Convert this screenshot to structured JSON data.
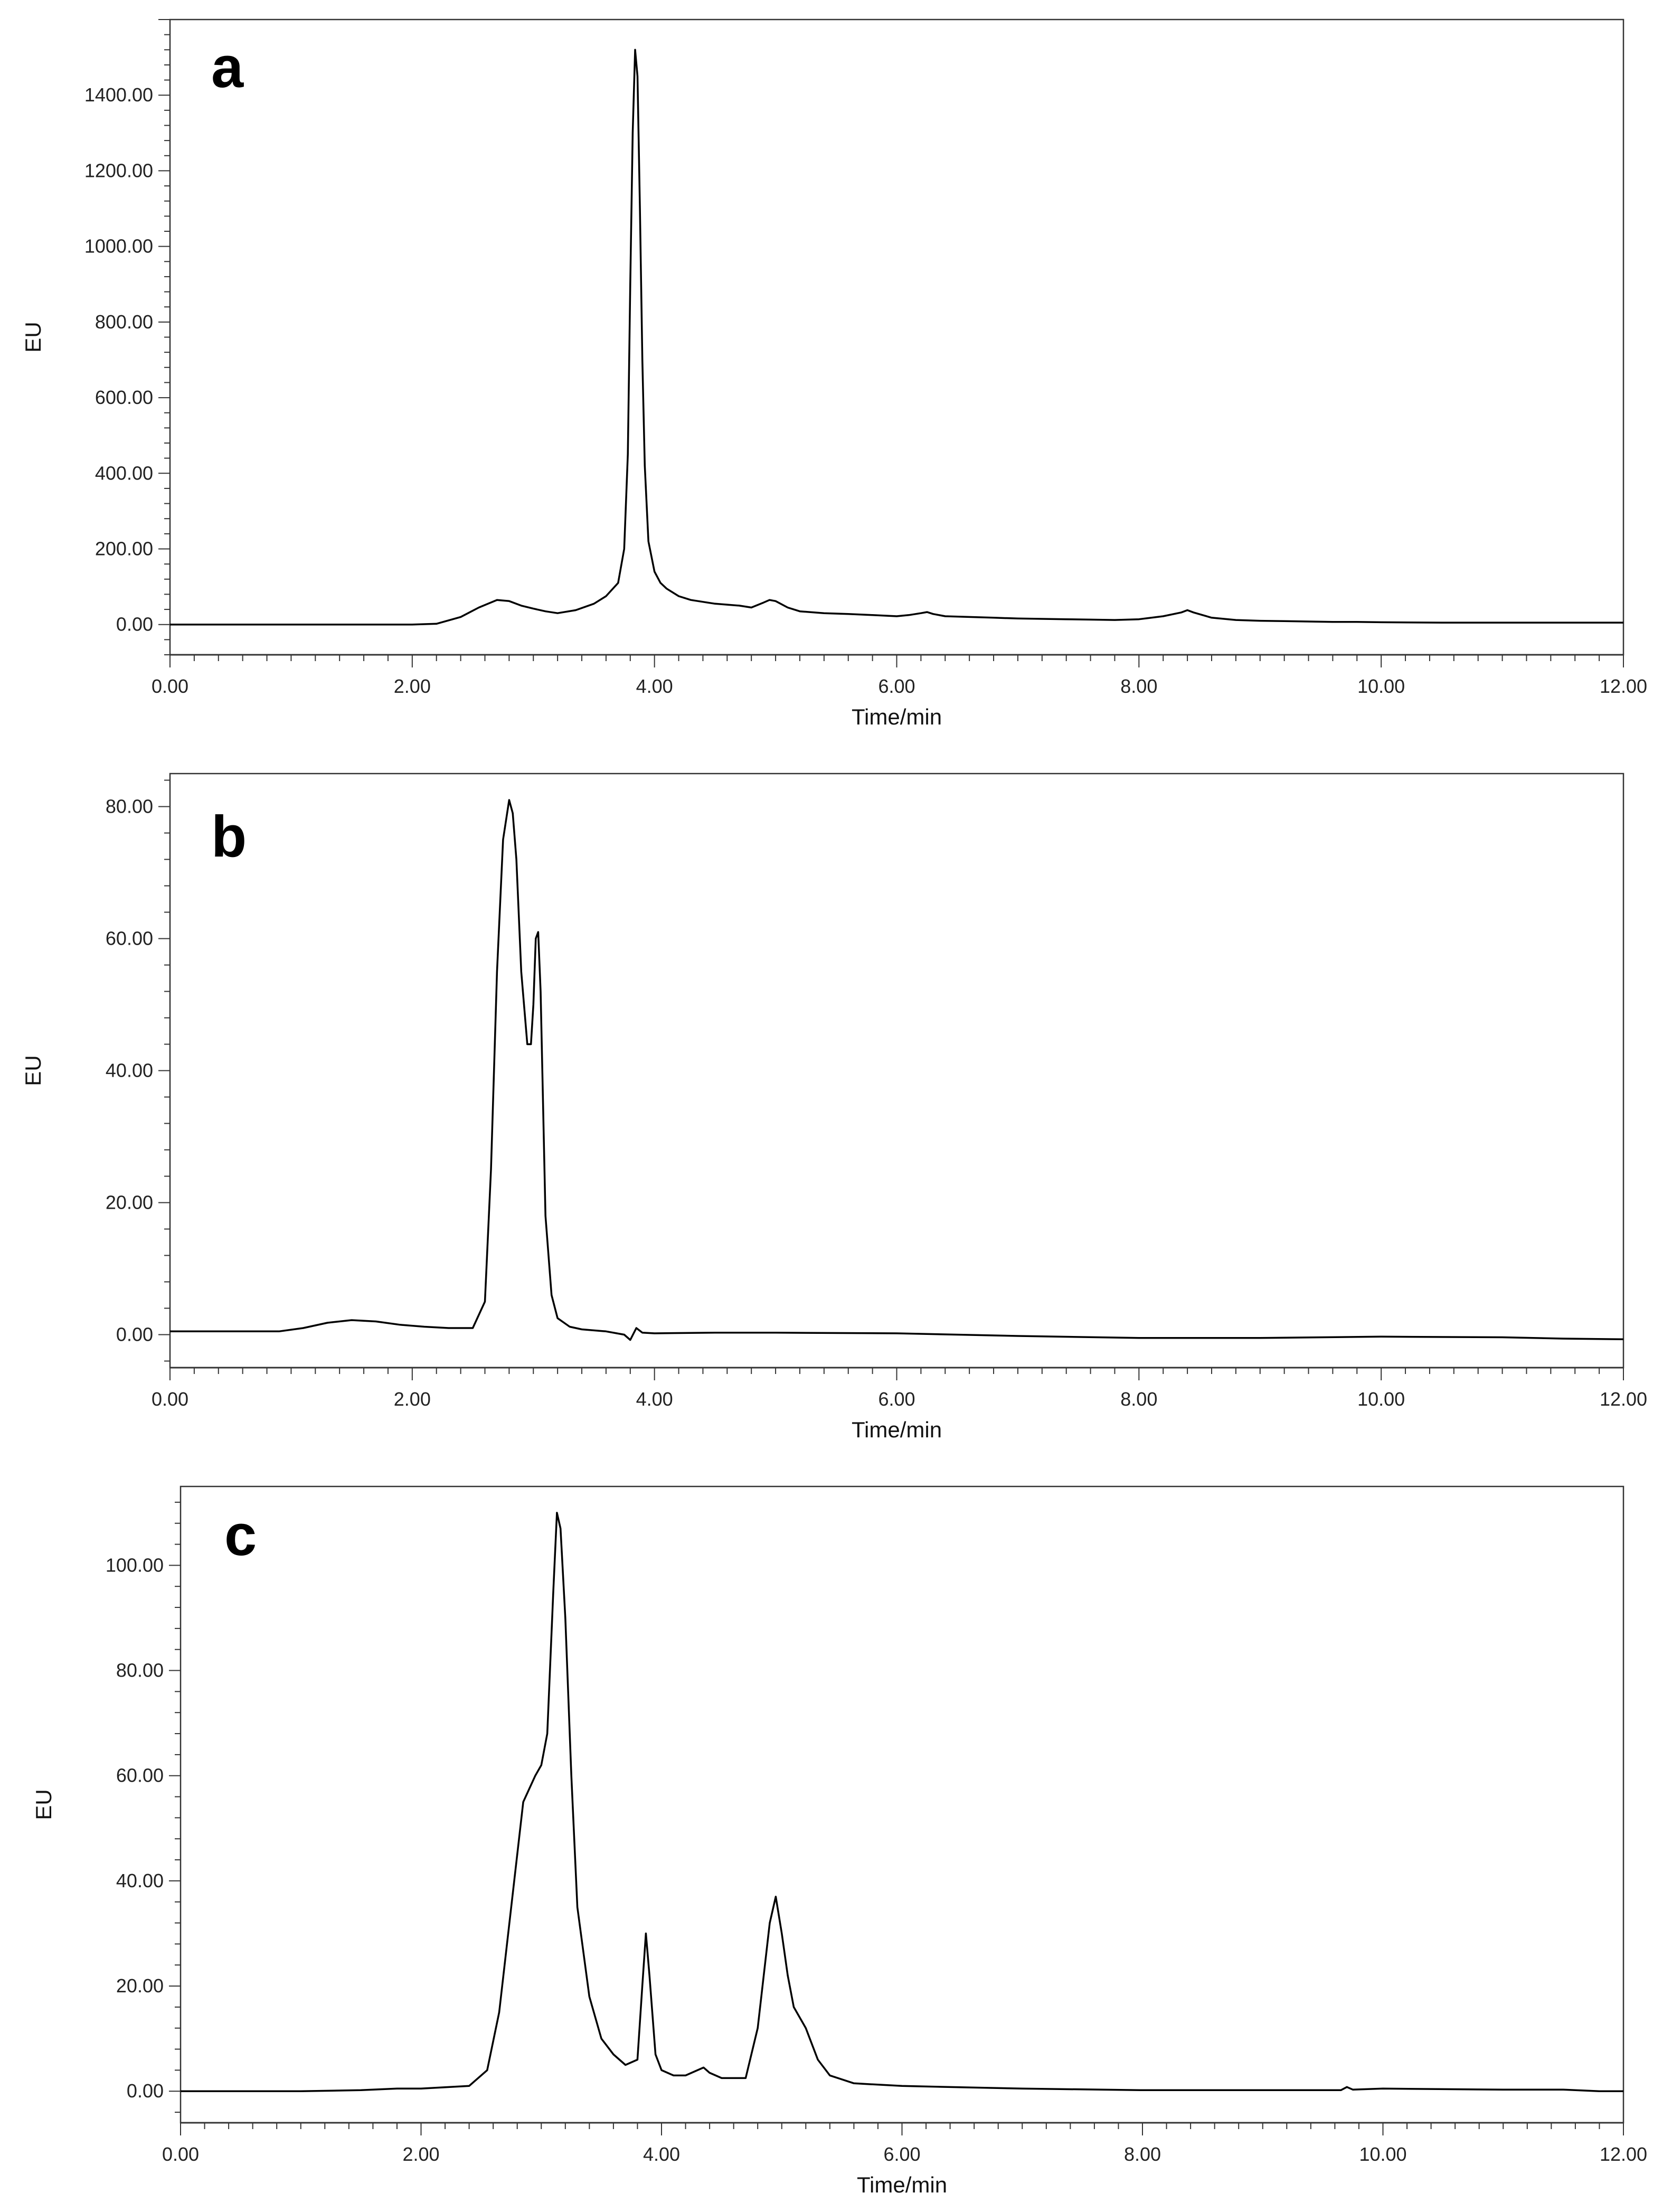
{
  "chart_data": [
    {
      "type": "line",
      "panel_label": "a",
      "xlabel": "Time/min",
      "ylabel": "EU",
      "xlim": [
        0,
        12
      ],
      "ylim": [
        -80,
        1600
      ],
      "x_ticks": [
        0,
        2,
        4,
        6,
        8,
        10,
        12
      ],
      "x_tick_labels": [
        "0.00",
        "2.00",
        "4.00",
        "6.00",
        "8.00",
        "10.00",
        "12.00"
      ],
      "y_ticks": [
        0,
        200,
        400,
        600,
        800,
        1000,
        1200,
        1400
      ],
      "y_tick_labels": [
        "0.00",
        "200.00",
        "400.00",
        "600.00",
        "800.00",
        "1000.00",
        "1200.00",
        "1400.00"
      ],
      "grid": false,
      "series": [
        {
          "x": [
            0,
            0.5,
            1,
            1.5,
            2,
            2.2,
            2.4,
            2.55,
            2.7,
            2.8,
            2.9,
            3.0,
            3.1,
            3.2,
            3.35,
            3.5,
            3.6,
            3.7,
            3.75,
            3.78,
            3.8,
            3.82,
            3.84,
            3.86,
            3.88,
            3.9,
            3.92,
            3.95,
            4.0,
            4.05,
            4.1,
            4.2,
            4.3,
            4.5,
            4.7,
            4.8,
            4.9,
            4.95,
            5.0,
            5.1,
            5.2,
            5.4,
            5.6,
            5.8,
            6.0,
            6.1,
            6.2,
            6.25,
            6.3,
            6.4,
            6.6,
            6.8,
            7.0,
            7.2,
            7.4,
            7.6,
            7.8,
            8.0,
            8.2,
            8.35,
            8.4,
            8.45,
            8.6,
            8.8,
            9.0,
            9.2,
            9.4,
            9.6,
            9.8,
            10.0,
            10.5,
            11.0,
            11.5,
            12.0
          ],
          "y": [
            0,
            0,
            0,
            0,
            0,
            2,
            20,
            45,
            65,
            62,
            50,
            42,
            35,
            30,
            38,
            55,
            75,
            110,
            200,
            450,
            900,
            1300,
            1520,
            1450,
            1100,
            700,
            420,
            220,
            140,
            110,
            95,
            75,
            65,
            55,
            50,
            45,
            58,
            65,
            62,
            45,
            35,
            30,
            28,
            25,
            22,
            25,
            30,
            33,
            28,
            22,
            20,
            18,
            16,
            15,
            14,
            13,
            12,
            14,
            22,
            32,
            38,
            32,
            18,
            12,
            10,
            9,
            8,
            7,
            7,
            6,
            5,
            5,
            5,
            5
          ]
        }
      ]
    },
    {
      "type": "line",
      "panel_label": "b",
      "xlabel": "Time/min",
      "ylabel": "EU",
      "xlim": [
        0,
        12
      ],
      "ylim": [
        -5,
        85
      ],
      "x_ticks": [
        0,
        2,
        4,
        6,
        8,
        10,
        12
      ],
      "x_tick_labels": [
        "0.00",
        "2.00",
        "4.00",
        "6.00",
        "8.00",
        "10.00",
        "12.00"
      ],
      "y_ticks": [
        0,
        20,
        40,
        60,
        80
      ],
      "y_tick_labels": [
        "0.00",
        "20.00",
        "40.00",
        "60.00",
        "80.00"
      ],
      "grid": false,
      "series": [
        {
          "x": [
            0,
            0.5,
            0.9,
            1.1,
            1.3,
            1.5,
            1.7,
            1.9,
            2.1,
            2.3,
            2.5,
            2.6,
            2.65,
            2.7,
            2.75,
            2.8,
            2.83,
            2.86,
            2.9,
            2.95,
            2.98,
            3.0,
            3.02,
            3.04,
            3.06,
            3.08,
            3.1,
            3.15,
            3.2,
            3.3,
            3.4,
            3.6,
            3.75,
            3.8,
            3.85,
            3.9,
            4.0,
            4.5,
            5.0,
            6.0,
            7.0,
            8.0,
            9.0,
            10.0,
            11.0,
            11.5,
            12.0
          ],
          "y": [
            0.5,
            0.5,
            0.5,
            1.0,
            1.8,
            2.2,
            2.0,
            1.5,
            1.2,
            1.0,
            1.0,
            5,
            25,
            55,
            75,
            81,
            79,
            72,
            55,
            44,
            44,
            50,
            60,
            61,
            52,
            35,
            18,
            6,
            2.5,
            1.2,
            0.8,
            0.5,
            0,
            -0.8,
            1,
            0.3,
            0.2,
            0.3,
            0.3,
            0.2,
            -0.2,
            -0.5,
            -0.5,
            -0.3,
            -0.4,
            -0.6,
            -0.7
          ]
        }
      ]
    },
    {
      "type": "line",
      "panel_label": "c",
      "xlabel": "Time/min",
      "ylabel": "EU",
      "xlim": [
        0,
        12
      ],
      "ylim": [
        -6,
        115
      ],
      "x_ticks": [
        0,
        2,
        4,
        6,
        8,
        10,
        12
      ],
      "x_tick_labels": [
        "0.00",
        "2.00",
        "4.00",
        "6.00",
        "8.00",
        "10.00",
        "12.00"
      ],
      "y_ticks": [
        0,
        20,
        40,
        60,
        80,
        100
      ],
      "y_tick_labels": [
        "0.00",
        "20.00",
        "40.00",
        "60.00",
        "80.00",
        "100.00"
      ],
      "grid": false,
      "series": [
        {
          "x": [
            0,
            1,
            1.5,
            1.8,
            2.0,
            2.4,
            2.55,
            2.65,
            2.75,
            2.85,
            2.95,
            3.0,
            3.05,
            3.1,
            3.13,
            3.16,
            3.2,
            3.25,
            3.3,
            3.4,
            3.5,
            3.6,
            3.7,
            3.8,
            3.84,
            3.87,
            3.9,
            3.95,
            4.0,
            4.1,
            4.2,
            4.3,
            4.35,
            4.4,
            4.5,
            4.7,
            4.8,
            4.9,
            4.95,
            5.0,
            5.05,
            5.1,
            5.2,
            5.3,
            5.4,
            5.6,
            6.0,
            7.0,
            8.0,
            9.0,
            9.65,
            9.7,
            9.75,
            10.0,
            11.0,
            11.5,
            11.8,
            12.0
          ],
          "y": [
            0,
            0,
            0.2,
            0.5,
            0.5,
            1,
            4,
            15,
            35,
            55,
            60,
            62,
            68,
            95,
            110,
            107,
            90,
            60,
            35,
            18,
            10,
            7,
            5,
            6,
            20,
            30,
            22,
            7,
            4,
            3,
            3,
            4,
            4.5,
            3.5,
            2.5,
            2.5,
            12,
            32,
            37,
            30,
            22,
            16,
            12,
            6,
            3,
            1.5,
            1,
            0.5,
            0.2,
            0.2,
            0.2,
            0.8,
            0.3,
            0.5,
            0.3,
            0.3,
            0,
            0
          ]
        }
      ]
    }
  ]
}
